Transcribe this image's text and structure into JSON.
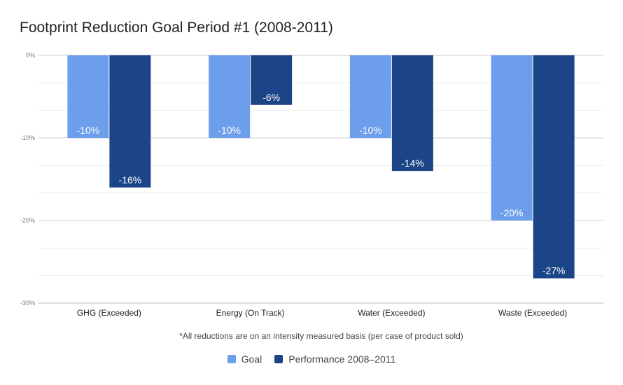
{
  "chart_data": {
    "type": "bar",
    "title": "Footprint Reduction Goal Period #1 (2008-2011)",
    "xlabel": "*All reductions are on an intensity measured basis (per case of product sold)",
    "ylabel": "",
    "categories": [
      "GHG (Exceeded)",
      "Energy (On Track)",
      "Water (Exceeded)",
      "Waste (Exceeded)"
    ],
    "series": [
      {
        "name": "Goal",
        "color": "#6d9eeb",
        "values": [
          -10,
          -10,
          -10,
          -20
        ],
        "labels": [
          "-10%",
          "-10%",
          "-10%",
          "-20%"
        ]
      },
      {
        "name": "Performance 2008–2011",
        "color": "#1c4587",
        "values": [
          -16,
          -6,
          -14,
          -27
        ],
        "labels": [
          "-16%",
          "-6%",
          "-14%",
          "-27%"
        ]
      }
    ],
    "ylim": [
      -30,
      0
    ],
    "yticks": [
      0,
      -10,
      -20,
      -30
    ],
    "ytick_labels": [
      "0%",
      "-10%",
      "-20%",
      "-30%"
    ],
    "grid": true,
    "legend": "bottom"
  }
}
